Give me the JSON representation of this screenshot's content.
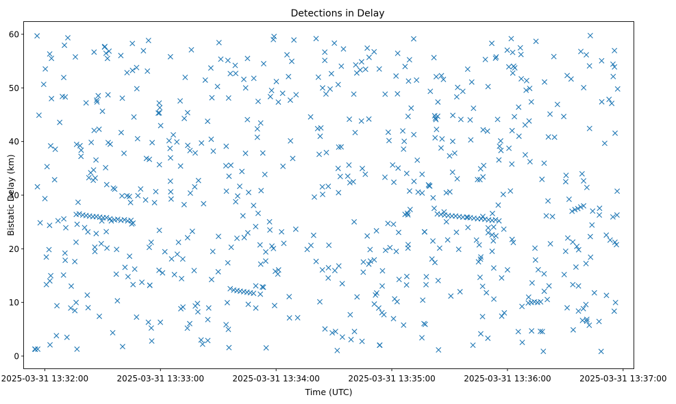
{
  "chart_data": {
    "type": "scatter",
    "title": "Detections in Delay",
    "xlabel": "Time (UTC)",
    "ylabel": "Bistatic Delay (km)",
    "marker": "x",
    "color": "#1f77b4",
    "x_tick_values_seconds": [
      0,
      60,
      120,
      180,
      240,
      300
    ],
    "x_tick_labels": [
      "2025-03-31 13:32:00",
      "2025-03-31 13:33:00",
      "2025-03-31 13:34:00",
      "2025-03-31 13:35:00",
      "2025-03-31 13:36:00",
      "2025-03-31 13:37:00"
    ],
    "xlim_seconds": [
      -10.8,
      305.4
    ],
    "x_data_range_seconds": [
      -5.3,
      298.5
    ],
    "y_tick_labels": [
      "0",
      "10",
      "20",
      "30",
      "40",
      "50",
      "60"
    ],
    "y_tick_values": [
      0,
      10,
      20,
      30,
      40,
      50,
      60
    ],
    "ylim": [
      -2.3,
      62.3
    ],
    "y_data_range": [
      0.8,
      59.8
    ],
    "scatter_seed": 20250331,
    "scatter_random_count": 650,
    "tracks": [
      {
        "name": "track-1",
        "points": [
          [
            16.3,
            26.4
          ],
          [
            17.9,
            26.5
          ],
          [
            19.7,
            26.3
          ],
          [
            21.4,
            26.2
          ],
          [
            23.2,
            26.1
          ],
          [
            25.0,
            26.0
          ],
          [
            26.7,
            26.0
          ],
          [
            28.5,
            25.9
          ],
          [
            30.3,
            25.8
          ],
          [
            32.0,
            25.8
          ],
          [
            33.8,
            25.6
          ]
        ]
      },
      {
        "name": "track-2",
        "points": [
          [
            34.5,
            25.2
          ],
          [
            36.2,
            25.4
          ],
          [
            37.8,
            25.5
          ],
          [
            39.5,
            25.3
          ],
          [
            41.3,
            25.4
          ],
          [
            43.0,
            25.2
          ],
          [
            44.7,
            25.3
          ]
        ]
      },
      {
        "name": "track-3",
        "points": [
          [
            98.0,
            12.3
          ],
          [
            99.7,
            12.2
          ],
          [
            101.4,
            12.1
          ],
          [
            103.2,
            12.0
          ],
          [
            104.9,
            11.9
          ],
          [
            106.6,
            11.8
          ],
          [
            108.3,
            11.7
          ]
        ]
      },
      {
        "name": "track-4",
        "points": [
          [
            203.6,
            26.5
          ],
          [
            205.5,
            26.4
          ],
          [
            207.4,
            26.3
          ],
          [
            209.3,
            26.2
          ],
          [
            211.2,
            26.1
          ],
          [
            213.1,
            26.1
          ],
          [
            215.0,
            26.0
          ],
          [
            216.9,
            25.9
          ],
          [
            218.8,
            25.9
          ],
          [
            220.7,
            25.8
          ],
          [
            222.6,
            25.7
          ],
          [
            224.5,
            25.6
          ],
          [
            226.4,
            25.6
          ],
          [
            228.3,
            25.5
          ]
        ]
      },
      {
        "name": "track-5",
        "points": [
          [
            230.2,
            25.4
          ],
          [
            232.0,
            25.3
          ],
          [
            233.8,
            25.4
          ],
          [
            235.6,
            25.2
          ]
        ]
      },
      {
        "name": "track-6",
        "points": [
          [
            273.5,
            27.0
          ],
          [
            275.0,
            27.3
          ],
          [
            276.5,
            27.5
          ],
          [
            278.0,
            27.8
          ],
          [
            279.5,
            28.0
          ]
        ]
      },
      {
        "name": "track-7",
        "points": [
          [
            230.0,
            23.0
          ],
          [
            232.0,
            22.6
          ],
          [
            234.0,
            22.4
          ]
        ]
      },
      {
        "name": "track-8",
        "points": [
          [
            250.8,
            9.9
          ],
          [
            252.4,
            10.0
          ],
          [
            254.0,
            10.1
          ],
          [
            255.6,
            10.0
          ],
          [
            257.2,
            10.1
          ]
        ]
      }
    ]
  }
}
